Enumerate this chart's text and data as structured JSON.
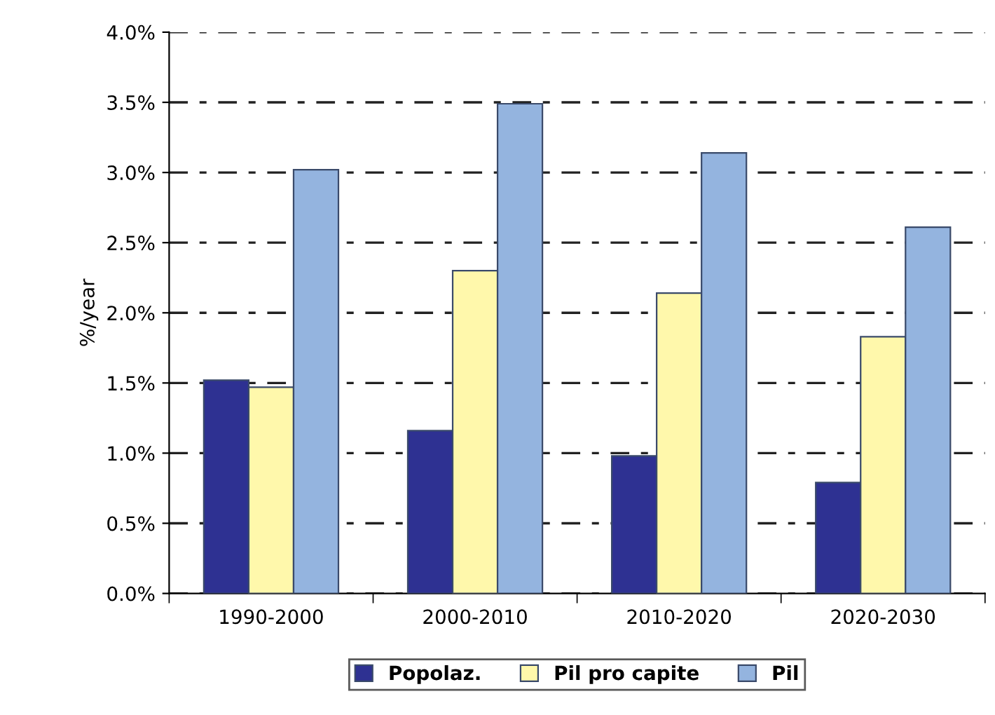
{
  "chart_data": {
    "type": "bar",
    "ylabel": "%/year",
    "categories": [
      "1990-2000",
      "2000-2010",
      "2010-2020",
      "2020-2030"
    ],
    "series": [
      {
        "name": "Popolaz.",
        "color": "#2e3192",
        "values": [
          1.52,
          1.16,
          0.98,
          0.79
        ]
      },
      {
        "name": "Pil pro capite",
        "color": "#fff8ab",
        "values": [
          1.47,
          2.3,
          2.14,
          1.83
        ]
      },
      {
        "name": "Pil",
        "color": "#94b4df",
        "values": [
          3.02,
          3.49,
          3.14,
          2.61
        ]
      }
    ],
    "ylim": [
      0,
      4
    ],
    "yticks": [
      {
        "value": 0,
        "label": "0.0%"
      },
      {
        "value": 0.5,
        "label": "0.5%"
      },
      {
        "value": 1,
        "label": "1.0%"
      },
      {
        "value": 1.5,
        "label": "1.5%"
      },
      {
        "value": 2,
        "label": "2.0%"
      },
      {
        "value": 2.5,
        "label": "2.5%"
      },
      {
        "value": 3,
        "label": "3.0%"
      },
      {
        "value": 3.5,
        "label": "3.5%"
      },
      {
        "value": 4,
        "label": "4.0%"
      }
    ],
    "grid": "y",
    "legend": "bottom"
  }
}
